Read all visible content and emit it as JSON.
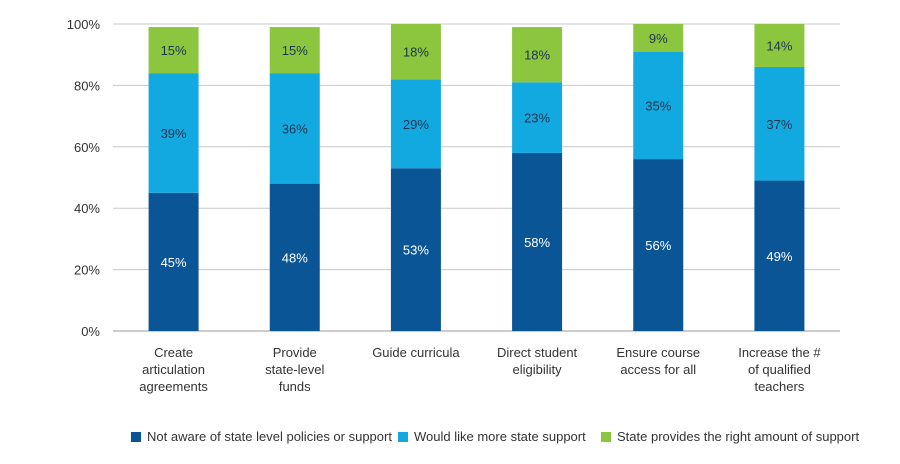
{
  "chart_data": {
    "type": "bar",
    "stacked": true,
    "categories": [
      [
        "Create",
        "articulation",
        "agreements"
      ],
      [
        "Provide",
        "state-level",
        "funds"
      ],
      [
        "Guide curricula"
      ],
      [
        "Direct student",
        "eligibility"
      ],
      [
        "Ensure course",
        "access for all"
      ],
      [
        "Increase the #",
        "of qualified",
        "teachers"
      ]
    ],
    "series": [
      {
        "name": "Not aware of state level policies or support",
        "color": "#0a5596",
        "values": [
          45,
          48,
          53,
          58,
          56,
          49
        ]
      },
      {
        "name": "Would like more state support",
        "color": "#12a9e1",
        "values": [
          39,
          36,
          29,
          23,
          35,
          37
        ]
      },
      {
        "name": "State provides the right amount of support",
        "color": "#8cc63e",
        "values": [
          15,
          15,
          18,
          18,
          9,
          14
        ]
      }
    ],
    "value_suffix": "%",
    "ylim": [
      0,
      100
    ],
    "yticks": [
      "0%",
      "20%",
      "40%",
      "60%",
      "80%",
      "100%"
    ],
    "grid": true,
    "legend_position": "bottom"
  }
}
